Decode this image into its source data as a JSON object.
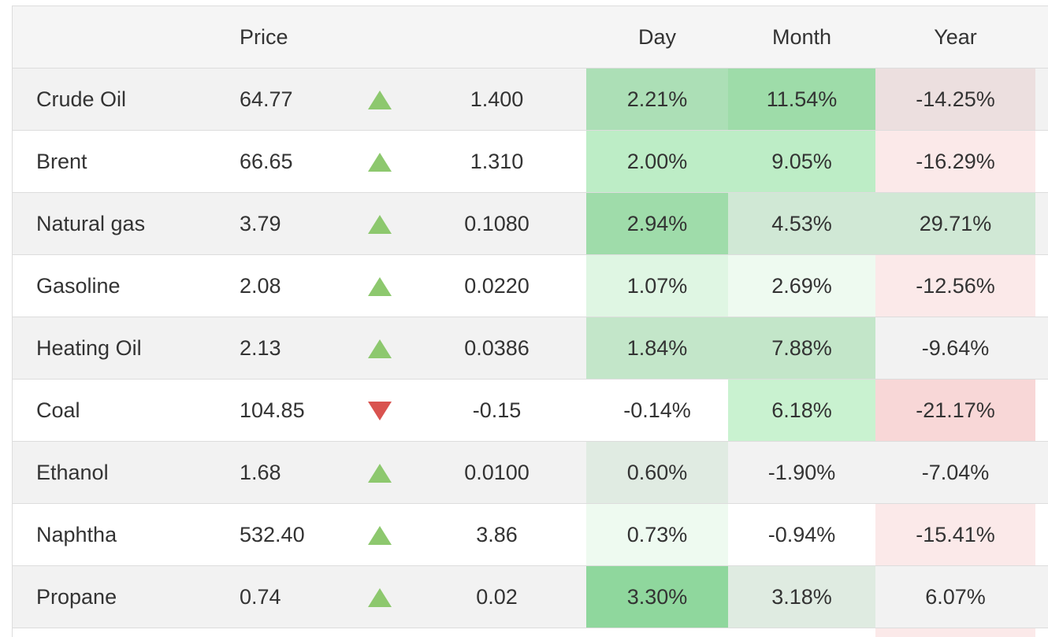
{
  "header": {
    "name": "",
    "price": "Price",
    "arrow": "",
    "change": "",
    "day": "Day",
    "month": "Month",
    "year": "Year"
  },
  "rows": [
    {
      "name": "Crude Oil",
      "price": "64.77",
      "direction": "up",
      "change": "1.400",
      "day": "2.21%",
      "month": "11.54%",
      "year": "-14.25%",
      "colors": {
        "day": "#acdfb6",
        "month": "#9edca9",
        "year": "#ecdfdf"
      }
    },
    {
      "name": "Brent",
      "price": "66.65",
      "direction": "up",
      "change": "1.310",
      "day": "2.00%",
      "month": "9.05%",
      "year": "-16.29%",
      "colors": {
        "day": "#bdedc6",
        "month": "#bdedc6",
        "year": "#fbe9e9"
      }
    },
    {
      "name": "Natural gas",
      "price": "3.79",
      "direction": "up",
      "change": "0.1080",
      "day": "2.94%",
      "month": "4.53%",
      "year": "29.71%",
      "colors": {
        "day": "#9fdcaa",
        "month": "#d0e8d5",
        "year": "#d0e8d5"
      }
    },
    {
      "name": "Gasoline",
      "price": "2.08",
      "direction": "up",
      "change": "0.0220",
      "day": "1.07%",
      "month": "2.69%",
      "year": "-12.56%",
      "colors": {
        "day": "#dff6e3",
        "month": "#eefaf0",
        "year": "#fbe9e9"
      }
    },
    {
      "name": "Heating Oil",
      "price": "2.13",
      "direction": "up",
      "change": "0.0386",
      "day": "1.84%",
      "month": "7.88%",
      "year": "-9.64%",
      "colors": {
        "day": "#c3e6c9",
        "month": "#c3e6c9",
        "year": "#f2f2f2"
      }
    },
    {
      "name": "Coal",
      "price": "104.85",
      "direction": "down",
      "change": "-0.15",
      "day": "-0.14%",
      "month": "6.18%",
      "year": "-21.17%",
      "colors": {
        "day": "#ffffff",
        "month": "#c9f2d0",
        "year": "#f8d7d7"
      }
    },
    {
      "name": "Ethanol",
      "price": "1.68",
      "direction": "up",
      "change": "0.0100",
      "day": "0.60%",
      "month": "-1.90%",
      "year": "-7.04%",
      "colors": {
        "day": "#e0ebe2",
        "month": "#f2f2f2",
        "year": "#f2f2f2"
      }
    },
    {
      "name": "Naphtha",
      "price": "532.40",
      "direction": "up",
      "change": "3.86",
      "day": "0.73%",
      "month": "-0.94%",
      "year": "-15.41%",
      "colors": {
        "day": "#eefaf0",
        "month": "#ffffff",
        "year": "#fbe9e9"
      }
    },
    {
      "name": "Propane",
      "price": "0.74",
      "direction": "up",
      "change": "0.02",
      "day": "3.30%",
      "month": "3.18%",
      "year": "6.07%",
      "colors": {
        "day": "#8fd79d",
        "month": "#dfebe1",
        "year": "#f2f2f2"
      }
    }
  ],
  "arrow_colors": {
    "up": "#8dc86e",
    "down": "#d9534f"
  }
}
